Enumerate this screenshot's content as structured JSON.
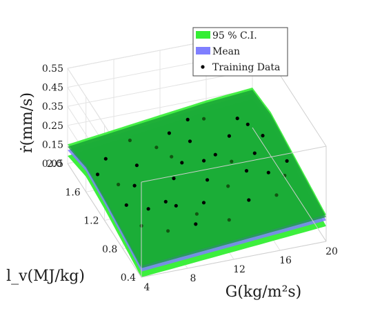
{
  "chart_data": {
    "type": "surface3d",
    "xlabel": "G(kg/m²s)",
    "ylabel": "l_v(MJ/kg)",
    "zlabel": "ṙ(mm/s)",
    "xticks": [
      "4",
      "8",
      "12",
      "16",
      "20"
    ],
    "yticks": [
      "0.4",
      "0.8",
      "1.2",
      "1.6",
      "2.0"
    ],
    "zticks": [
      "0.05",
      "0.15",
      "0.25",
      "0.35",
      "0.45",
      "0.55"
    ],
    "xlim": [
      4,
      20
    ],
    "ylim": [
      0.4,
      2.0
    ],
    "zlim": [
      0.05,
      0.55
    ],
    "grid": true,
    "legend_position": "top-right",
    "legend": [
      "95 % C.I.",
      "Mean",
      "Training Data"
    ],
    "colors": {
      "ci": "#33ee33",
      "ci_inner": "#119933",
      "mean": "#7f7fff",
      "points": "#000000"
    },
    "surface": {
      "x": [
        4,
        8,
        12,
        16,
        20
      ],
      "y": [
        0.4,
        0.8,
        1.2,
        1.6,
        2.0
      ],
      "mean": [
        [
          0.08,
          0.1,
          0.12,
          0.14,
          0.16
        ],
        [
          0.11,
          0.13,
          0.15,
          0.17,
          0.19
        ],
        [
          0.14,
          0.16,
          0.18,
          0.2,
          0.22
        ],
        [
          0.16,
          0.18,
          0.2,
          0.23,
          0.25
        ],
        [
          0.12,
          0.15,
          0.18,
          0.21,
          0.23
        ]
      ],
      "ci_halfwidth": 0.03
    },
    "training_points": [
      [
        5.0,
        1.6,
        0.13
      ],
      [
        5.5,
        1.1,
        0.15
      ],
      [
        6.0,
        0.9,
        0.11
      ],
      [
        6.5,
        1.8,
        0.12
      ],
      [
        7.0,
        1.3,
        0.16
      ],
      [
        7.5,
        0.7,
        0.14
      ],
      [
        8.0,
        1.5,
        0.18
      ],
      [
        8.5,
        1.0,
        0.17
      ],
      [
        9.0,
        1.9,
        0.15
      ],
      [
        9.5,
        0.6,
        0.19
      ],
      [
        10.0,
        1.2,
        0.2
      ],
      [
        10.5,
        1.7,
        0.17
      ],
      [
        11.0,
        0.8,
        0.21
      ],
      [
        11.5,
        1.4,
        0.19
      ],
      [
        12.0,
        0.5,
        0.22
      ],
      [
        12.5,
        1.1,
        0.2
      ],
      [
        13.0,
        1.6,
        0.21
      ],
      [
        13.5,
        0.9,
        0.23
      ],
      [
        14.0,
        1.3,
        0.24
      ],
      [
        14.5,
        0.7,
        0.22
      ],
      [
        15.0,
        1.8,
        0.23
      ],
      [
        15.5,
        1.0,
        0.25
      ],
      [
        16.0,
        1.5,
        0.24
      ],
      [
        16.5,
        0.6,
        0.26
      ],
      [
        17.0,
        1.2,
        0.25
      ],
      [
        17.5,
        1.7,
        0.24
      ],
      [
        18.0,
        0.8,
        0.27
      ],
      [
        18.5,
        1.4,
        0.25
      ],
      [
        19.0,
        1.0,
        0.26
      ],
      [
        6.0,
        1.4,
        0.14
      ],
      [
        9.0,
        0.9,
        0.18
      ],
      [
        12.0,
        1.8,
        0.19
      ],
      [
        15.0,
        1.2,
        0.23
      ],
      [
        18.0,
        1.6,
        0.24
      ],
      [
        7.0,
        1.0,
        0.15
      ],
      [
        11.0,
        1.5,
        0.19
      ],
      [
        14.0,
        1.9,
        0.2
      ],
      [
        17.0,
        0.9,
        0.26
      ],
      [
        10.0,
        0.7,
        0.2
      ],
      [
        13.0,
        1.3,
        0.22
      ]
    ]
  }
}
